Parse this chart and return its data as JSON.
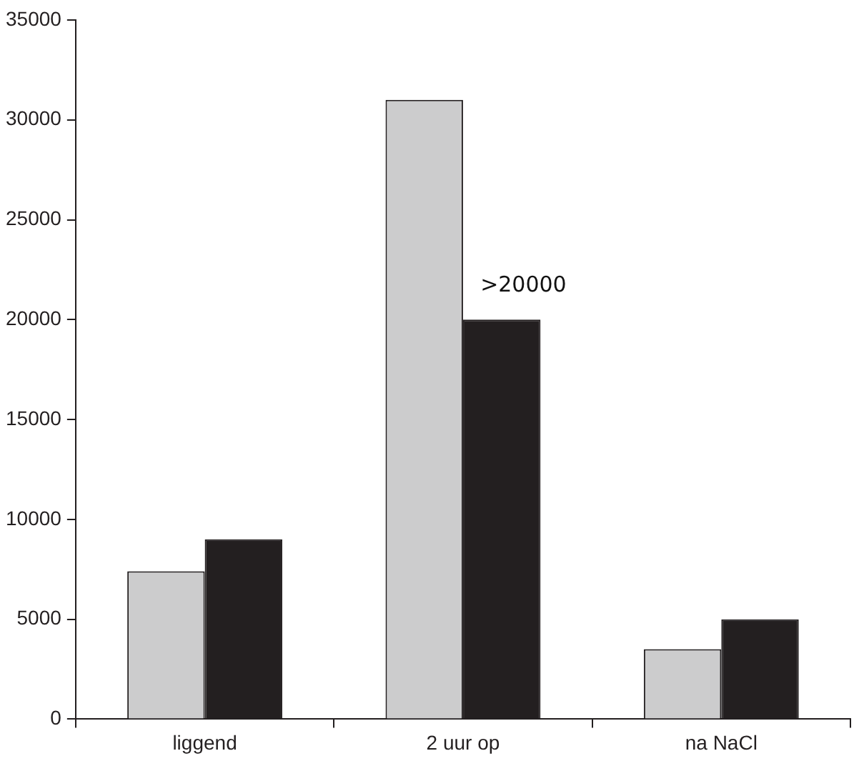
{
  "chart_data": {
    "type": "bar",
    "categories": [
      "liggend",
      "2 uur op",
      "na NaCl"
    ],
    "series": [
      {
        "color": "#cccccd",
        "values": [
          7400,
          31000,
          3500
        ]
      },
      {
        "color": "#231f20",
        "values": [
          9000,
          20000,
          5000
        ]
      }
    ],
    "ylim": [
      0,
      35000
    ],
    "yticks": [
      0,
      5000,
      10000,
      15000,
      20000,
      25000,
      30000,
      35000
    ],
    "grid": false,
    "legend": false,
    "annotations": [
      {
        "text": ">20000",
        "x": "2 uur op",
        "y": 20000
      }
    ]
  }
}
